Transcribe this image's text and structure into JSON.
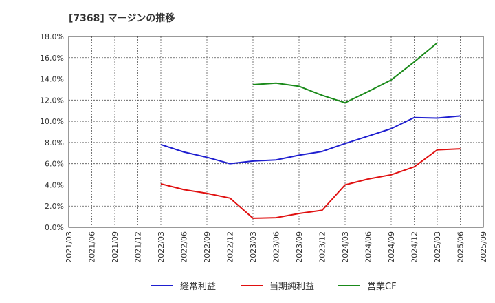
{
  "chart_data": {
    "type": "line",
    "title": "[7368]  マージンの推移",
    "xlabel": "",
    "ylabel": "",
    "ylim": [
      0,
      18
    ],
    "y_ticks": [
      0,
      2,
      4,
      6,
      8,
      10,
      12,
      14,
      16,
      18
    ],
    "y_tick_labels": [
      "0.0%",
      "2.0%",
      "4.0%",
      "6.0%",
      "8.0%",
      "10.0%",
      "12.0%",
      "14.0%",
      "16.0%",
      "18.0%"
    ],
    "x_ticks": [
      "2021/03",
      "2021/06",
      "2021/09",
      "2021/12",
      "2022/03",
      "2022/06",
      "2022/09",
      "2022/12",
      "2023/03",
      "2023/06",
      "2023/09",
      "2023/12",
      "2024/03",
      "2024/06",
      "2024/09",
      "2024/12",
      "2025/03",
      "2025/06",
      "2025/09"
    ],
    "grid": true,
    "legend_position": "bottom",
    "series": [
      {
        "name": "経常利益",
        "color": "#1f1fd0",
        "x": [
          "2022/03",
          "2022/06",
          "2022/09",
          "2022/12",
          "2023/03",
          "2023/06",
          "2023/09",
          "2023/12",
          "2024/03",
          "2024/06",
          "2024/09",
          "2024/12",
          "2025/03",
          "2025/06"
        ],
        "values": [
          7.8,
          7.1,
          6.6,
          6.0,
          6.25,
          6.35,
          6.8,
          7.15,
          7.9,
          8.6,
          9.3,
          10.35,
          10.3,
          10.5
        ]
      },
      {
        "name": "当期純利益",
        "color": "#e01010",
        "x": [
          "2022/03",
          "2022/06",
          "2022/09",
          "2022/12",
          "2023/03",
          "2023/06",
          "2023/09",
          "2023/12",
          "2024/03",
          "2024/06",
          "2024/09",
          "2024/12",
          "2025/03",
          "2025/06"
        ],
        "values": [
          4.1,
          3.55,
          3.2,
          2.75,
          0.85,
          0.9,
          1.3,
          1.6,
          4.0,
          4.55,
          4.95,
          5.7,
          7.3,
          7.4
        ]
      },
      {
        "name": "営業CF",
        "color": "#1a8a1a",
        "x": [
          "2023/03",
          "2023/06",
          "2023/09",
          "2023/12",
          "2024/03",
          "2024/06",
          "2024/09",
          "2024/12",
          "2025/03"
        ],
        "values": [
          13.45,
          13.6,
          13.3,
          12.45,
          11.75,
          12.8,
          13.9,
          15.6,
          17.4
        ]
      }
    ]
  }
}
